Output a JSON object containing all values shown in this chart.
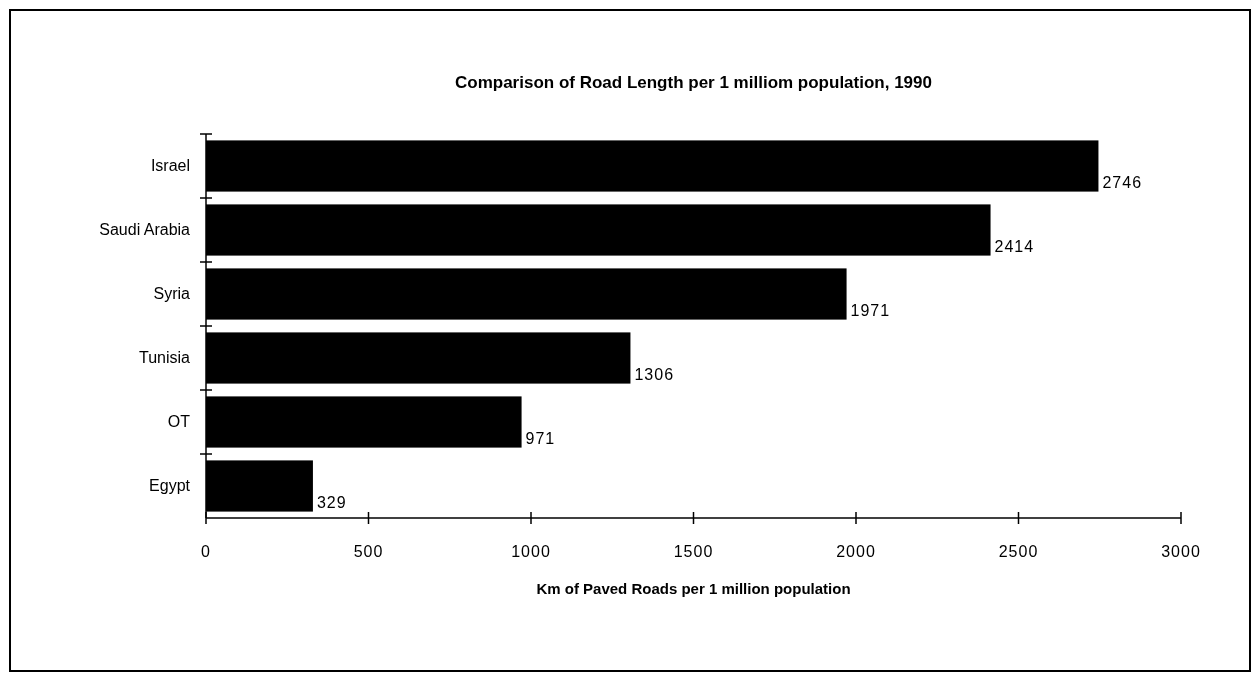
{
  "chart_data": {
    "type": "bar",
    "orientation": "horizontal",
    "title": "Comparison of Road Length per 1 milliom population, 1990",
    "xlabel": "Km of Paved Roads per 1 million population",
    "categories": [
      "Israel",
      "Saudi Arabia",
      "Syria",
      "Tunisia",
      "OT",
      "Egypt"
    ],
    "values": [
      2746,
      2414,
      1971,
      1306,
      971,
      329
    ],
    "color": "#000000",
    "xlim": [
      0,
      3000
    ],
    "xticks": [
      0,
      500,
      1000,
      1500,
      2000,
      2500,
      3000
    ],
    "data_labels": true,
    "grid": false
  }
}
